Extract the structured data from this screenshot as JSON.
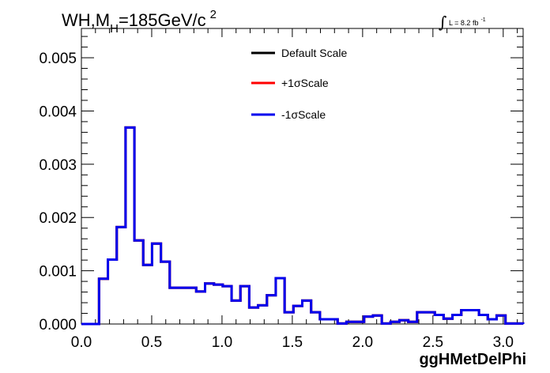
{
  "chart_data": {
    "type": "line",
    "title": "WH,M",
    "title_subscript": "H",
    "title_suffix": "=185GeV/c",
    "title_superscript": "2",
    "lumi_symbol": "∫",
    "lumi_text": "L = 8.2 fb",
    "lumi_superscript": "-1",
    "xlabel": "ggHMetDelPhi",
    "ylabel": "",
    "xlim": [
      0,
      3.1416
    ],
    "ylim": [
      0,
      0.00555
    ],
    "x_ticks": [
      0.0,
      0.5,
      1.0,
      1.5,
      2.0,
      2.5,
      3.0
    ],
    "x_tick_labels": [
      "0.0",
      "0.5",
      "1.0",
      "1.5",
      "2.0",
      "2.5",
      "3.0"
    ],
    "y_ticks": [
      0,
      0.001,
      0.002,
      0.003,
      0.004,
      0.005
    ],
    "y_tick_labels": [
      "0.000",
      "0.001",
      "0.002",
      "0.003",
      "0.004",
      "0.005"
    ],
    "grid": false,
    "legend_position": "top-center",
    "bin_edges": [
      0,
      0.0628,
      0.1257,
      0.1885,
      0.2513,
      0.3142,
      0.377,
      0.4398,
      0.5027,
      0.5655,
      0.6283,
      0.6912,
      0.754,
      0.8168,
      0.8796,
      0.9425,
      1.0053,
      1.0681,
      1.131,
      1.1938,
      1.2566,
      1.3195,
      1.3823,
      1.4451,
      1.508,
      1.5708,
      1.6336,
      1.6965,
      1.7593,
      1.8221,
      1.885,
      1.9478,
      2.0106,
      2.0735,
      2.1363,
      2.1991,
      2.2619,
      2.3248,
      2.3876,
      2.4504,
      2.5133,
      2.5761,
      2.6389,
      2.7018,
      2.7646,
      2.8274,
      2.8903,
      2.9531,
      3.0159,
      3.0788,
      3.1416
    ],
    "series": [
      {
        "name": "Default Scale",
        "color": "#000000",
        "values": [
          0,
          0,
          0.00085,
          0.00121,
          0.00182,
          0.00369,
          0.00157,
          0.00111,
          0.00151,
          0.00117,
          0.00068,
          0.00068,
          0.00068,
          0.00061,
          0.00076,
          0.00074,
          0.00071,
          0.00044,
          0.00071,
          0.00031,
          0.00035,
          0.00054,
          0.00086,
          0.00022,
          0.00034,
          0.00044,
          0.00022,
          9e-05,
          9e-05,
          1e-05,
          4e-05,
          4e-05,
          0.00014,
          0.00016,
          1e-05,
          4e-05,
          7e-05,
          4e-05,
          0.00022,
          0.00022,
          0.00017,
          0.0001,
          0.00017,
          0.00026,
          0.00026,
          0.00017,
          9e-05,
          0.00016,
          1e-05,
          1e-05
        ]
      },
      {
        "name": "+1σScale",
        "color": "#ff0000",
        "values": [
          0,
          0,
          0.00085,
          0.00121,
          0.00182,
          0.00369,
          0.00157,
          0.00111,
          0.00151,
          0.00117,
          0.00068,
          0.00068,
          0.00068,
          0.00061,
          0.00076,
          0.00074,
          0.00071,
          0.00044,
          0.00071,
          0.00031,
          0.00035,
          0.00054,
          0.00086,
          0.00022,
          0.00034,
          0.00044,
          0.00022,
          9e-05,
          9e-05,
          1e-05,
          4e-05,
          4e-05,
          0.00014,
          0.00016,
          1e-05,
          4e-05,
          7e-05,
          4e-05,
          0.00022,
          0.00022,
          0.00017,
          0.0001,
          0.00017,
          0.00026,
          0.00026,
          0.00017,
          9e-05,
          0.00016,
          1e-05,
          1e-05
        ]
      },
      {
        "name": "-1σScale",
        "color": "#0000ee",
        "values": [
          0,
          0,
          0.00085,
          0.00121,
          0.00182,
          0.00369,
          0.00157,
          0.00111,
          0.00151,
          0.00117,
          0.00068,
          0.00068,
          0.00068,
          0.00061,
          0.00076,
          0.00074,
          0.00071,
          0.00044,
          0.00071,
          0.00031,
          0.00035,
          0.00054,
          0.00086,
          0.00022,
          0.00034,
          0.00044,
          0.00022,
          9e-05,
          9e-05,
          1e-05,
          4e-05,
          4e-05,
          0.00014,
          0.00016,
          1e-05,
          4e-05,
          7e-05,
          4e-05,
          0.00022,
          0.00022,
          0.00017,
          0.0001,
          0.00017,
          0.00026,
          0.00026,
          0.00017,
          9e-05,
          0.00016,
          1e-05,
          1e-05
        ]
      }
    ]
  }
}
